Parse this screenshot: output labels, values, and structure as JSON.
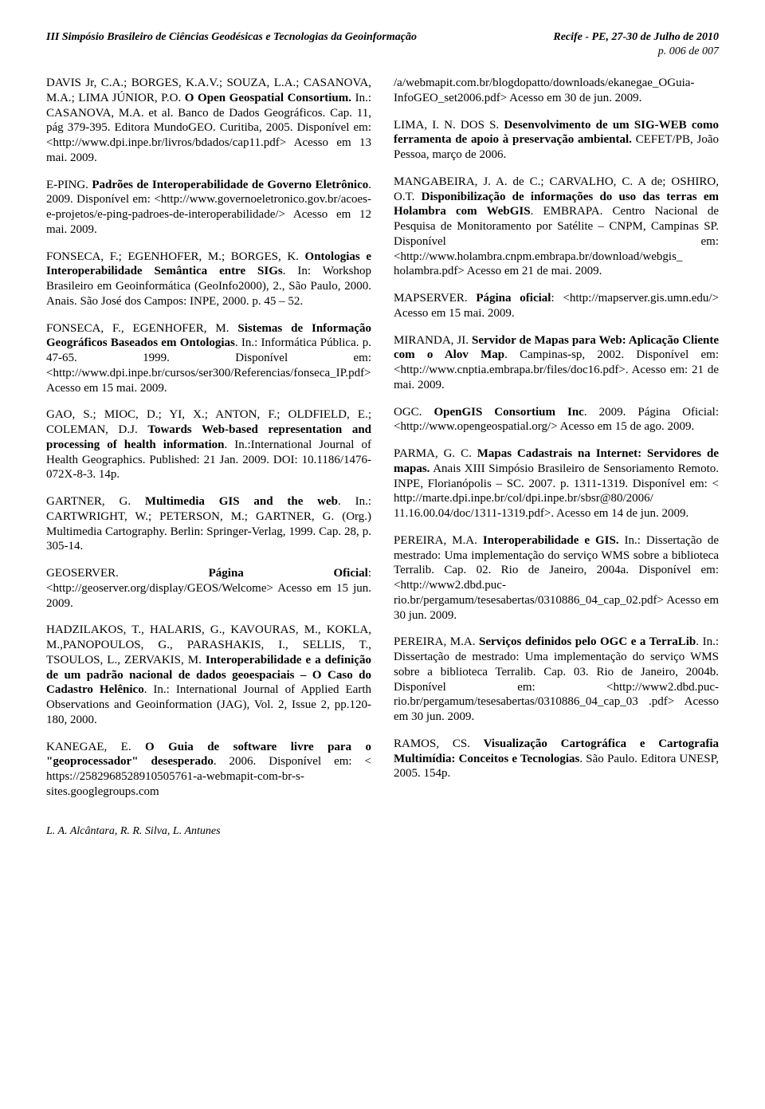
{
  "header": {
    "left": "III Simpósio Brasileiro de Ciências Geodésicas e Tecnologias da Geoinformação",
    "right": "Recife - PE, 27-30 de Julho de 2010",
    "page": "p. 006 de 007"
  },
  "refs": [
    "DAVIS Jr, C.A.; BORGES, K.A.V.; SOUZA, L.A.; CASANOVA, M.A.; LIMA JÚNIOR, P.O. <b>O Open Geospatial Consortium.</b> In.: CASANOVA, M.A. et al. Banco de Dados Geográficos. Cap. 11, pág 379-395. Editora MundoGEO. Curitiba, 2005. Disponível em: <http://www.dpi.inpe.br/livros/bdados/cap11.pdf> Acesso em 13 mai. 2009.",
    "E-PING. <b>Padrões de Interoperabilidade de Governo Eletrônico</b>. 2009. Disponível em: <http://www.governoeletronico.gov.br/acoes-e-projetos/e-ping-padroes-de-interoperabilidade/> Acesso em 12 mai. 2009.",
    "FONSECA, F.; EGENHOFER, M.; BORGES, K. <b>Ontologias e Interoperabilidade Semântica entre SIGs</b>. In: Workshop Brasileiro em Geoinformática (GeoInfo2000), 2., São Paulo, 2000. Anais. São José dos Campos: INPE, 2000. p. 45 – 52.",
    "FONSECA, F., EGENHOFER, M. <b>Sistemas de Informação Geográficos Baseados em Ontologias</b>. In.: Informática Pública. p. 47-65. 1999. Disponível em: <http://www.dpi.inpe.br/cursos/ser300/Referencias/fonseca_IP.pdf> Acesso em 15 mai. 2009.",
    "GAO, S.; MIOC, D.; YI, X.; ANTON, F.; OLDFIELD, E.; COLEMAN, D.J. <b>Towards Web-based representation and processing of health information</b>. In.:International Journal of Health Geographics. Published: 21 Jan. 2009. DOI: 10.1186/1476-072X-8-3. 14p.",
    "GARTNER, G. <b>Multimedia GIS and the web</b>. In.: CARTWRIGHT, W.; PETERSON, M.; GARTNER, G. (Org.) Multimedia Cartography. Berlin: Springer-Verlag, 1999. Cap. 28, p. 305-14.",
    "GEOSERVER. <b>Página Oficial</b>: <http://geoserver.org/display/GEOS/Welcome> Acesso em 15 jun. 2009.",
    "HADZILAKOS, T., HALARIS, G., KAVOURAS, M., KOKLA, M.,PANOPOULOS, G., PARASHAKIS, I., SELLIS, T., TSOULOS, L., ZERVAKIS, M. <b>Interoperabilidade e a definição de um padrão nacional de dados geoespaciais – O Caso do Cadastro Helênico</b>. In.: International Journal of Applied Earth Observations and Geoinformation (JAG), Vol. 2, Issue 2, pp.120-180, 2000.",
    "KANEGAE, E. <b>O Guia de software livre para o \"geoprocessador\" desesperado</b>. 2006. Disponível em: < https://2582968528910505761-a-webmapit-com-br-s-sites.googlegroups.com",
    "/a/webmapit.com.br/blogdopatto/downloads/ekanegae_OGuia-InfoGEO_set2006.pdf> Acesso em 30 de jun. 2009.",
    "LIMA, I. N. DOS S. <b>Desenvolvimento de um SIG-WEB como ferramenta de apoio à preservação ambiental.</b> CEFET/PB, João Pessoa, março de 2006.",
    "MANGABEIRA, J. A. de C.; CARVALHO, C. A de; OSHIRO, O.T. <b>Disponibilização de informações do uso das terras em Holambra com WebGIS</b>. EMBRAPA. Centro Nacional de Pesquisa de Monitoramento por Satélite – CNPM, Campinas SP. Disponível em: <http://www.holambra.cnpm.embrapa.br/download/webgis_ holambra.pdf> Acesso em 21 de mai. 2009.",
    "MAPSERVER. <b>Página oficial</b>: <http://mapserver.gis.umn.edu/> Acesso em 15 mai. 2009.",
    "MIRANDA, JI. <b>Servidor de Mapas para Web: Aplicação Cliente com o Alov Map</b>. Campinas-sp, 2002. Disponível em: <http://www.cnptia.embrapa.br/files/doc16.pdf>. Acesso em: 21 de mai. 2009.",
    "OGC. <b>OpenGIS Consortium Inc</b>. 2009. Página Oficial: <http://www.opengeospatial.org/> Acesso em 15 de ago. 2009.",
    "PARMA, G. C. <b>Mapas Cadastrais na Internet: Servidores de mapas.</b> Anais XIII Simpósio Brasileiro de Sensoriamento Remoto. INPE, Florianópolis – SC. 2007. p. 1311-1319. Disponível em: < http://marte.dpi.inpe.br/col/dpi.inpe.br/sbsr@80/2006/ 11.16.00.04/doc/1311-1319.pdf>. Acesso em 14 de jun. 2009.",
    "PEREIRA, M.A. <b>Interoperabilidade e GIS.</b> In.: Dissertação de mestrado: Uma implementação do serviço WMS sobre a biblioteca Terralib. Cap. 02. Rio de Janeiro, 2004a. Disponível em: <http://www2.dbd.puc-rio.br/pergamum/tesesabertas/0310886_04_cap_02.pdf> Acesso em 30 jun. 2009.",
    "PEREIRA, M.A. <b>Serviços definidos pelo OGC e a TerraLib</b>. In.: Dissertação de mestrado: Uma implementação do serviço WMS sobre a biblioteca Terralib. Cap. 03. Rio de Janeiro, 2004b. Disponível em: <http://www2.dbd.puc-rio.br/pergamum/tesesabertas/0310886_04_cap_03 .pdf> Acesso em 30 jun. 2009.",
    "RAMOS, CS. <b>Visualização Cartográfica e Cartografia Multimídia: Conceitos e Tecnologias</b>. São Paulo. Editora UNESP, 2005. 154p."
  ],
  "footer": "L. A. Alcântara, R. R. Silva, L. Antunes"
}
